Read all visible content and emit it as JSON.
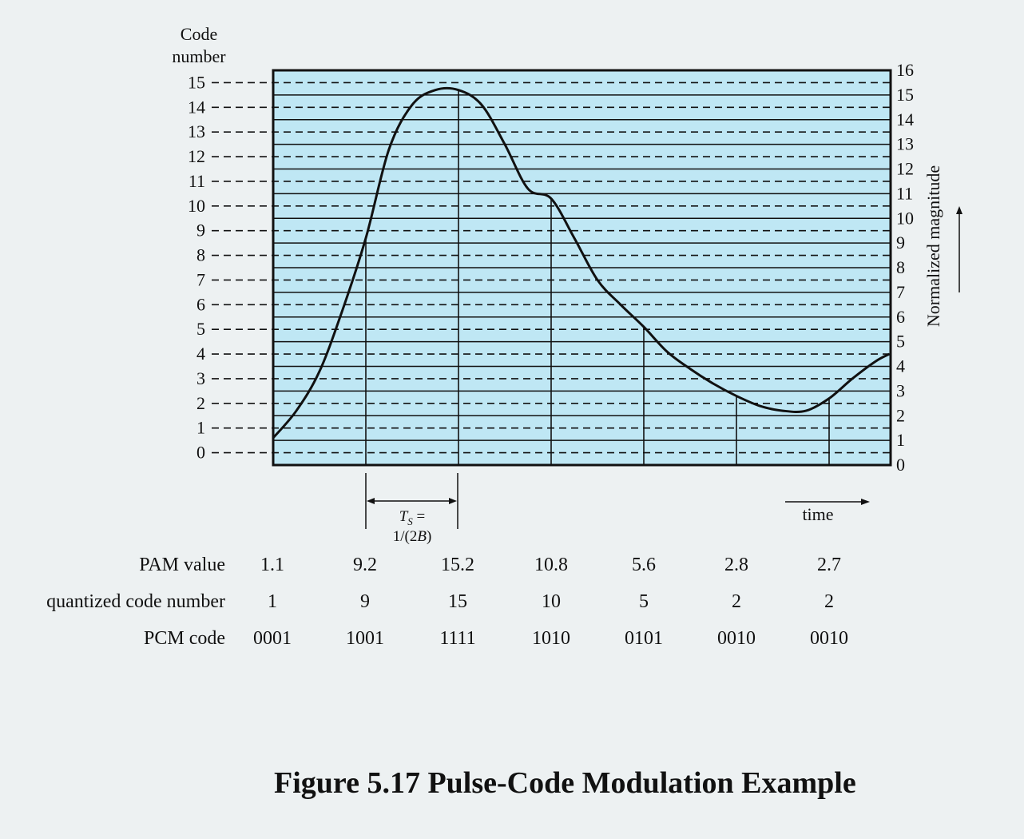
{
  "caption": "Figure 5.17  Pulse-Code Modulation Example",
  "left_axis": {
    "title_line1": "Code",
    "title_line2": "number",
    "ticks": [
      "0",
      "1",
      "2",
      "3",
      "4",
      "5",
      "6",
      "7",
      "8",
      "9",
      "10",
      "11",
      "12",
      "13",
      "14",
      "15"
    ]
  },
  "right_axis": {
    "title": "Normalized magnitude",
    "ticks": [
      "0",
      "1",
      "2",
      "3",
      "4",
      "5",
      "6",
      "7",
      "8",
      "9",
      "10",
      "11",
      "12",
      "13",
      "14",
      "15",
      "16"
    ]
  },
  "time_label": "time",
  "sample_interval": {
    "line1": "T",
    "line1_sub": "S",
    "line1_rest": " =",
    "line2_pre": "1/(2",
    "line2_var": "B",
    "line2_post": ")"
  },
  "table": {
    "rows": [
      {
        "label": "PAM value",
        "values": [
          "1.1",
          "9.2",
          "15.2",
          "10.8",
          "5.6",
          "2.8",
          "2.7"
        ]
      },
      {
        "label": "quantized code number",
        "values": [
          "1",
          "9",
          "15",
          "10",
          "5",
          "2",
          "2"
        ]
      },
      {
        "label": "PCM code",
        "values": [
          "0001",
          "1001",
          "1111",
          "1010",
          "0101",
          "0010",
          "0010"
        ]
      }
    ]
  },
  "colors": {
    "plot_bg": "#bfe7f4",
    "page_bg": "#edf1f2",
    "ink": "#111111"
  },
  "chart_data": {
    "type": "line",
    "title": "Pulse-Code Modulation Example",
    "xlabel": "time",
    "ylabel": "Normalized magnitude",
    "ylim": [
      0,
      16
    ],
    "samples": [
      {
        "index": 0,
        "pam": 1.1,
        "code": 1,
        "pcm": "0001"
      },
      {
        "index": 1,
        "pam": 9.2,
        "code": 9,
        "pcm": "1001"
      },
      {
        "index": 2,
        "pam": 15.2,
        "code": 15,
        "pcm": "1111"
      },
      {
        "index": 3,
        "pam": 10.8,
        "code": 10,
        "pcm": "1010"
      },
      {
        "index": 4,
        "pam": 5.6,
        "code": 5,
        "pcm": "0101"
      },
      {
        "index": 5,
        "pam": 2.8,
        "code": 2,
        "pcm": "0010"
      },
      {
        "index": 6,
        "pam": 2.7,
        "code": 2,
        "pcm": "0010"
      }
    ],
    "curve": {
      "t": [
        0,
        0.25,
        0.5,
        0.75,
        1,
        1.25,
        1.5,
        1.75,
        2,
        2.25,
        2.5,
        2.75,
        3,
        3.25,
        3.5,
        3.75,
        4,
        4.25,
        4.5,
        4.75,
        5,
        5.25,
        5.5,
        5.75,
        6,
        6.25,
        6.5,
        6.65
      ],
      "y": [
        1.1,
        2.2,
        3.8,
        6.3,
        9.2,
        12.8,
        14.6,
        15.2,
        15.2,
        14.6,
        13.0,
        11.2,
        10.8,
        9.2,
        7.5,
        6.5,
        5.6,
        4.6,
        3.9,
        3.3,
        2.8,
        2.4,
        2.2,
        2.2,
        2.7,
        3.5,
        4.2,
        4.5
      ]
    }
  }
}
